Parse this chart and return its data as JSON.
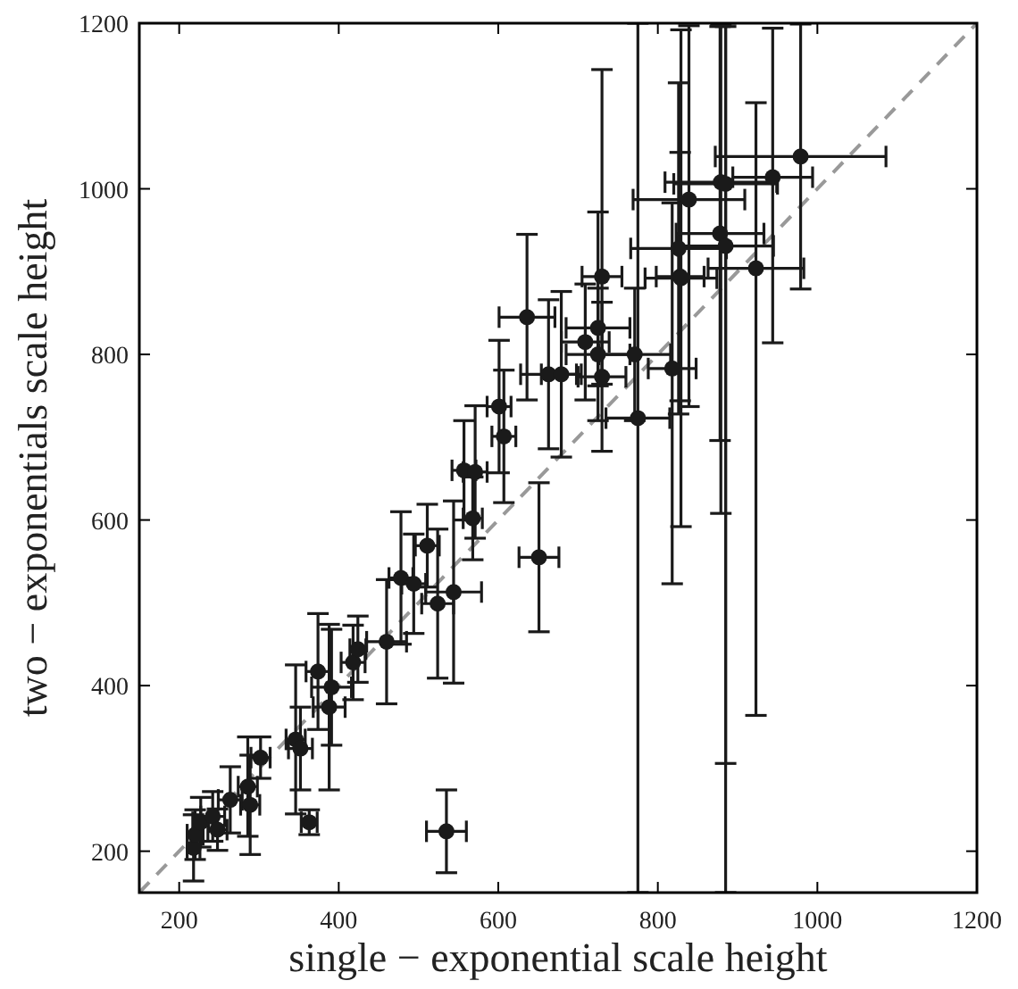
{
  "chart_data": {
    "type": "scatter",
    "xlabel": "single − exponential scale height",
    "ylabel": "two − exponentials scale height",
    "xlim": [
      150,
      1200
    ],
    "ylim": [
      150,
      1200
    ],
    "xticks": [
      200,
      400,
      600,
      800,
      1000,
      1200
    ],
    "yticks": [
      200,
      400,
      600,
      800,
      1000,
      1200
    ],
    "grid": false,
    "series": [
      {
        "marker": "circle",
        "color": "#1a1a1a",
        "x": [
          218,
          220,
          227,
          242,
          248,
          264,
          286,
          289,
          302,
          346,
          352,
          363,
          374,
          388,
          391,
          418,
          424,
          460,
          478,
          494,
          511,
          524,
          544,
          535,
          557,
          571,
          568,
          601,
          607,
          651,
          636,
          663,
          679,
          709,
          725,
          730,
          725,
          730,
          771,
          775,
          818,
          828,
          826,
          829,
          839,
          878,
          885,
          879,
          944,
          923,
          979,
          885
        ],
        "values": [
          204,
          220,
          235,
          242,
          226,
          262,
          278,
          256,
          313,
          335,
          324,
          235,
          417,
          374,
          398,
          428,
          444,
          453,
          530,
          523,
          569,
          499,
          513,
          224,
          660,
          658,
          602,
          737,
          701,
          555,
          845,
          776,
          776,
          815,
          832,
          894,
          800,
          773,
          800,
          723,
          783,
          894,
          928,
          892,
          987,
          946,
          931,
          1008,
          1014,
          904,
          1039,
          1006
        ],
        "errors": [
          40,
          30,
          30,
          30,
          25,
          40,
          60,
          60,
          25,
          90,
          50,
          15,
          70,
          100,
          70,
          45,
          40,
          75,
          80,
          60,
          50,
          90,
          110,
          50,
          60,
          80,
          50,
          80,
          80,
          90,
          100,
          90,
          100,
          70,
          [
            762,
            972
          ],
          [
            764,
            1144
          ],
          80,
          90,
          80,
          [
            150,
            1200
          ],
          [
            523,
            983
          ],
          150,
          200,
          300,
          [
            737,
            1197
          ],
          250,
          [
            150,
            1200
          ],
          [
            608,
            1198
          ],
          [
            814,
            1194
          ],
          [
            364,
            1104
          ],
          [
            879,
            1199
          ],
          [
            306,
            1196
          ]
        ],
        "xerrors": [
          8,
          10,
          10,
          15,
          12,
          15,
          12,
          12,
          12,
          12,
          15,
          10,
          15,
          20,
          25,
          15,
          10,
          25,
          15,
          15,
          15,
          20,
          35,
          25,
          15,
          15,
          12,
          15,
          15,
          25,
          35,
          35,
          25,
          30,
          40,
          25,
          40,
          30,
          45,
          40,
          30,
          30,
          60,
          45,
          70,
          55,
          60,
          70,
          50,
          60,
          107,
          65
        ]
      },
      {
        "type": "line",
        "color": "#999999",
        "line_style": "dashed",
        "x": [
          150,
          1200
        ],
        "values": [
          150,
          1200
        ]
      }
    ]
  }
}
